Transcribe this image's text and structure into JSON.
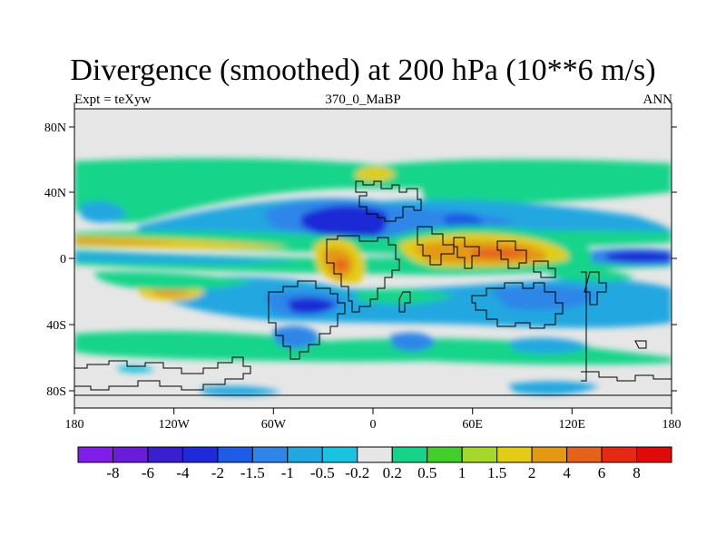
{
  "figure": {
    "title": "Divergence (smoothed) at 200 hPa (10**6 m/s)",
    "left_string": "Expt = teXyw",
    "center_string": "370_0_MaBP",
    "right_string": "ANN"
  },
  "map": {
    "projection": "cylindrical equidistant",
    "lon_range": [
      -180,
      180
    ],
    "lat_range": [
      -90,
      90
    ],
    "lon_tick_labels": [
      "180",
      "120W",
      "60W",
      "0",
      "60E",
      "120E",
      "180"
    ],
    "lat_tick_labels": [
      "80N",
      "40N",
      "0",
      "40S",
      "80S"
    ],
    "variable": "upper-level divergence, smoothed",
    "pressure_level_hPa": 200,
    "units": "10**6 m/s",
    "season": "ANN"
  },
  "colorbar": {
    "labels": [
      "-8",
      "-6",
      "-4",
      "-2",
      "-1.5",
      "-1",
      "-0.5",
      "-0.2",
      "0.2",
      "0.5",
      "1",
      "1.5",
      "2",
      "4",
      "6",
      "8"
    ],
    "colors": [
      "#7f1ee6",
      "#6a1cd9",
      "#3a1fcf",
      "#1f2bd6",
      "#1e5ce6",
      "#2f86e8",
      "#22a7e0",
      "#19c2df",
      "#e6e6e6",
      "#15d48a",
      "#43cf2b",
      "#a6d82b",
      "#e3cc16",
      "#e39a12",
      "#e5621a",
      "#e52a14",
      "#e00a0a"
    ]
  }
}
